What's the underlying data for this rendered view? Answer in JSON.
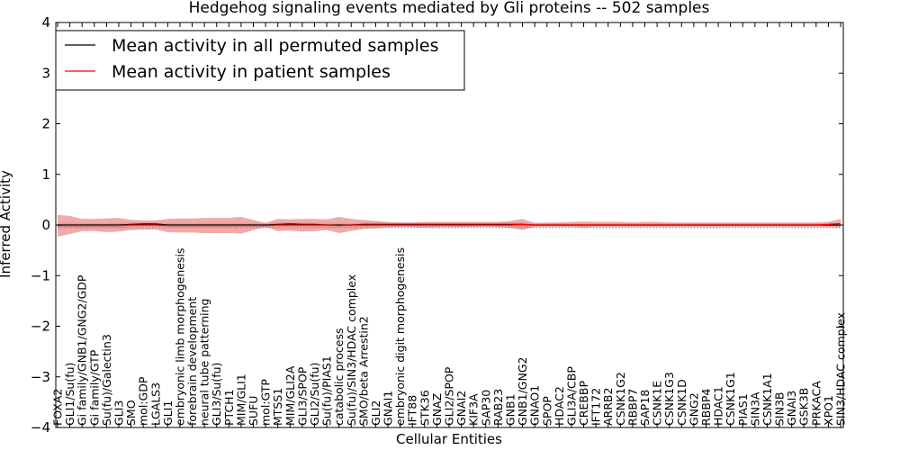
{
  "chart_data": {
    "type": "line",
    "title": "Hedgehog signaling events mediated by Gli proteins -- 502 samples",
    "xlabel": "Cellular Entities",
    "ylabel": "Inferred Activity",
    "ylim": [
      -4,
      4
    ],
    "yticks": [
      "4",
      "3",
      "2",
      "1",
      "0",
      "−1",
      "−2",
      "−3",
      "−4"
    ],
    "categories": [
      "FOXA2",
      "GLI1/Su(fu)",
      "Gi family/GNB1/GNG2/GDP",
      "Gi family/GTP",
      "Su(fu)/Galectin3",
      "GLI3",
      "SMO",
      "mol:GDP",
      "LGALS3",
      "GLI1",
      "embryonic limb morphogenesis",
      "forebrain development",
      "neural tube patterning",
      "GLI3/Su(fu)",
      "PTCH1",
      "MIM/GLI1",
      "SUFU",
      "mol:GTP",
      "MTSS1",
      "MIM/GLI2A",
      "GLI3/SPOP",
      "GLI2/Su(fu)",
      "Su(fu)/PIAS1",
      "catabolic process",
      "Su(fu)/SIN3/HDAC complex",
      "SMO/beta Arrestin2",
      "GLI2",
      "GNAI1",
      "embryonic digit morphogenesis",
      "IFT88",
      "STK36",
      "GNAZ",
      "GLI2/SPOP",
      "GNAI2",
      "KIF3A",
      "SAP30",
      "RAB23",
      "GNB1",
      "GNB1/GNG2",
      "GNAO1",
      "SPOP",
      "HDAC2",
      "GLI3A/CBP",
      "CREBBP",
      "IFT172",
      "ARRB2",
      "CSNK1G2",
      "RBBP7",
      "SAP18",
      "CSNK1E",
      "CSNK1G3",
      "CSNK1D",
      "GNG2",
      "RBBP4",
      "HDAC1",
      "CSNK1G1",
      "PIAS1",
      "SIN3A",
      "CSNK1A1",
      "SIN3B",
      "GNAI3",
      "GSK3B",
      "PRKACA",
      "XPO1",
      "SIN3/HDAC complex"
    ],
    "series": [
      {
        "name": "Mean activity in all permuted samples",
        "color": "#000000",
        "values": [
          0.0,
          0.0,
          0.0,
          0.0,
          0.0,
          0.0,
          0.01,
          0.02,
          0.02,
          0.0,
          0.0,
          0.0,
          0.0,
          0.0,
          0.0,
          0.0,
          0.0,
          0.0,
          0.01,
          0.02,
          0.01,
          0.01,
          0.0,
          0.0,
          0.0,
          0.01,
          0.01,
          0.01,
          0.01,
          0.01,
          0.01,
          0.01,
          0.01,
          0.01,
          0.01,
          0.01,
          0.01,
          0.01,
          0.01,
          0.0,
          0.0,
          0.0,
          0.0,
          0.0,
          0.0,
          0.0,
          0.0,
          0.0,
          0.0,
          0.0,
          0.0,
          0.0,
          0.0,
          0.0,
          0.0,
          0.0,
          0.0,
          0.0,
          0.0,
          0.0,
          0.0,
          0.0,
          0.0,
          0.0,
          0.0
        ],
        "band_upper": [
          0.05,
          0.05,
          0.04,
          0.04,
          0.04,
          0.04,
          0.05,
          0.05,
          0.05,
          0.04,
          0.04,
          0.04,
          0.04,
          0.04,
          0.04,
          0.04,
          0.04,
          0.04,
          0.05,
          0.05,
          0.05,
          0.05,
          0.04,
          0.04,
          0.04,
          0.05,
          0.05,
          0.05,
          0.05,
          0.05,
          0.05,
          0.05,
          0.05,
          0.05,
          0.05,
          0.05,
          0.05,
          0.05,
          0.05,
          0.04,
          0.04,
          0.04,
          0.04,
          0.04,
          0.04,
          0.04,
          0.04,
          0.04,
          0.04,
          0.04,
          0.04,
          0.04,
          0.04,
          0.04,
          0.04,
          0.04,
          0.04,
          0.04,
          0.04,
          0.04,
          0.04,
          0.04,
          0.04,
          0.04,
          0.04
        ],
        "band_lower": [
          -0.05,
          -0.05,
          -0.06,
          -0.06,
          -0.06,
          -0.06,
          -0.04,
          -0.03,
          -0.03,
          -0.05,
          -0.05,
          -0.05,
          -0.05,
          -0.05,
          -0.05,
          -0.04,
          -0.04,
          -0.05,
          -0.04,
          -0.04,
          -0.04,
          -0.04,
          -0.05,
          -0.05,
          -0.05,
          -0.04,
          -0.04,
          -0.04,
          -0.04,
          -0.05,
          -0.06,
          -0.07,
          -0.06,
          -0.05,
          -0.05,
          -0.05,
          -0.05,
          -0.05,
          -0.05,
          -0.06,
          -0.06,
          -0.05,
          -0.06,
          -0.06,
          -0.06,
          -0.06,
          -0.06,
          -0.06,
          -0.06,
          -0.06,
          -0.06,
          -0.06,
          -0.06,
          -0.07,
          -0.07,
          -0.06,
          -0.06,
          -0.06,
          -0.06,
          -0.06,
          -0.06,
          -0.06,
          -0.06,
          -0.06,
          -0.06
        ]
      },
      {
        "name": "Mean activity in patient samples",
        "color": "#ff0000",
        "values": [
          -0.01,
          -0.01,
          -0.01,
          -0.01,
          -0.01,
          -0.01,
          0.0,
          0.0,
          0.0,
          -0.01,
          -0.01,
          -0.01,
          -0.01,
          -0.01,
          -0.01,
          -0.01,
          -0.01,
          -0.01,
          0.0,
          0.0,
          0.0,
          0.0,
          0.0,
          -0.01,
          0.0,
          0.0,
          0.0,
          0.0,
          0.0,
          0.0,
          0.0,
          0.0,
          0.0,
          0.0,
          0.0,
          0.0,
          0.0,
          0.0,
          0.01,
          0.0,
          0.0,
          0.0,
          0.0,
          0.0,
          0.0,
          0.0,
          0.0,
          0.0,
          0.0,
          0.0,
          0.0,
          0.0,
          0.0,
          0.0,
          0.0,
          0.0,
          0.0,
          0.0,
          0.0,
          0.0,
          0.0,
          0.0,
          0.0,
          0.01,
          0.03
        ],
        "band_upper": [
          0.2,
          0.18,
          0.12,
          0.12,
          0.13,
          0.14,
          0.1,
          0.09,
          0.09,
          0.12,
          0.13,
          0.13,
          0.14,
          0.14,
          0.14,
          0.16,
          0.1,
          0.04,
          0.12,
          0.11,
          0.12,
          0.12,
          0.11,
          0.16,
          0.12,
          0.1,
          0.08,
          0.06,
          0.05,
          0.05,
          0.06,
          0.06,
          0.06,
          0.06,
          0.06,
          0.06,
          0.06,
          0.08,
          0.12,
          0.04,
          0.05,
          0.05,
          0.06,
          0.07,
          0.06,
          0.06,
          0.06,
          0.05,
          0.06,
          0.06,
          0.05,
          0.05,
          0.05,
          0.05,
          0.05,
          0.05,
          0.05,
          0.05,
          0.05,
          0.05,
          0.05,
          0.05,
          0.05,
          0.06,
          0.12
        ],
        "band_lower": [
          -0.23,
          -0.18,
          -0.12,
          -0.12,
          -0.14,
          -0.13,
          -0.1,
          -0.09,
          -0.09,
          -0.14,
          -0.15,
          -0.15,
          -0.16,
          -0.16,
          -0.16,
          -0.17,
          -0.1,
          -0.04,
          -0.12,
          -0.11,
          -0.13,
          -0.12,
          -0.1,
          -0.16,
          -0.12,
          -0.08,
          -0.07,
          -0.05,
          -0.04,
          -0.04,
          -0.05,
          -0.04,
          -0.04,
          -0.04,
          -0.04,
          -0.03,
          -0.04,
          -0.06,
          -0.1,
          -0.03,
          -0.03,
          -0.03,
          -0.03,
          -0.05,
          -0.03,
          -0.03,
          -0.03,
          -0.03,
          -0.03,
          -0.03,
          -0.03,
          -0.03,
          -0.03,
          -0.03,
          -0.03,
          -0.03,
          -0.03,
          -0.03,
          -0.03,
          -0.03,
          -0.03,
          -0.03,
          -0.03,
          -0.03,
          -0.05
        ]
      }
    ],
    "legend": [
      "Mean activity in all permuted samples",
      "Mean activity in patient samples"
    ],
    "legend_position": "top-left",
    "grid": false
  }
}
